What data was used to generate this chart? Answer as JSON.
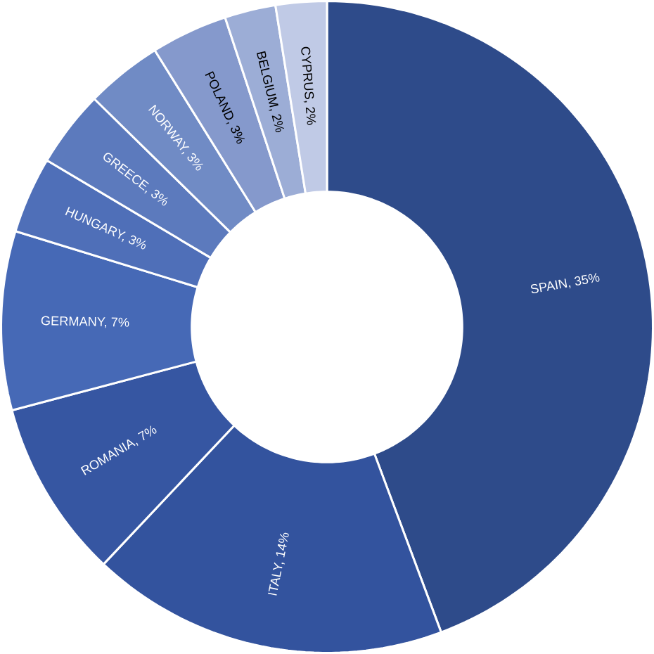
{
  "chart_data": {
    "type": "donut",
    "categories": [
      "SPAIN, 35%",
      "ITALY, 14%",
      "ROMANIA, 7%",
      "GERMANY, 7%",
      "HUNGARY, 3%",
      "GREECE, 3%",
      "NORWAY, 3%",
      "POLAND, 3%",
      "BELGIUM, 2%",
      "CYPRUS, 2%"
    ],
    "values": [
      35,
      14,
      7,
      7,
      3,
      3,
      3,
      3,
      2,
      2
    ],
    "colors": [
      "#2e4b8a",
      "#33539e",
      "#3656a2",
      "#4669b6",
      "#4f6fb8",
      "#5c7abd",
      "#708bc5",
      "#8599cc",
      "#9cadd6",
      "#c0cae6"
    ]
  }
}
